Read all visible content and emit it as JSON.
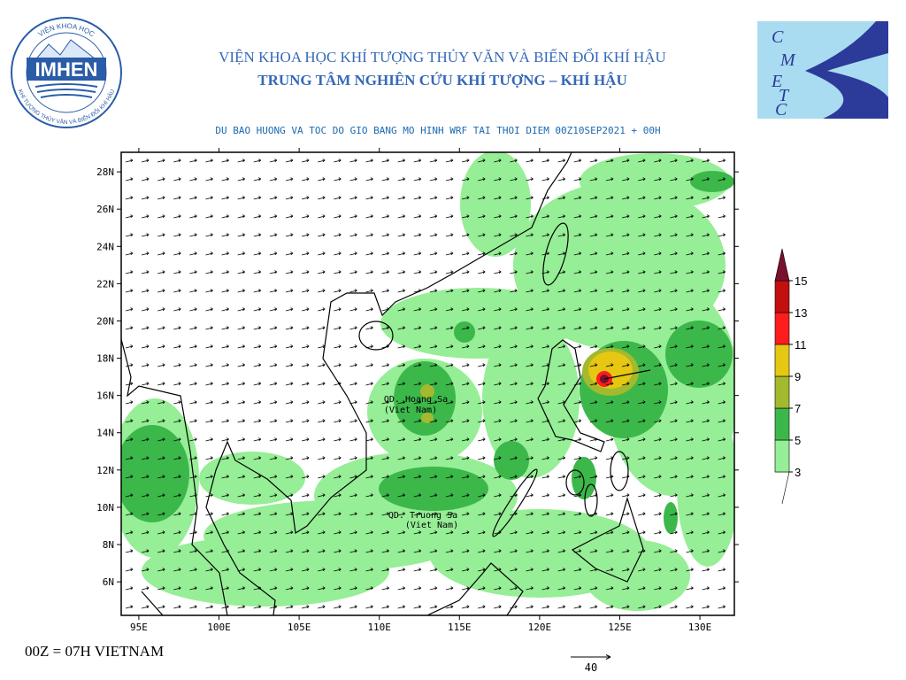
{
  "header": {
    "institute": "VIỆN KHOA HỌC KHÍ TƯỢNG THỦY VĂN VÀ BIẾN ĐỔI KHÍ HẬU",
    "center": "TRUNG TÂM NGHIÊN CỨU KHÍ TƯỢNG – KHÍ HẬU"
  },
  "logos": {
    "left": {
      "name": "IMHEN",
      "ring_top": "VIỆN KHOA HỌC",
      "ring_bottom": "KHÍ TƯỢNG THỦY VĂN VÀ BIẾN ĐỔI KHÍ HẬU"
    },
    "right": {
      "letters": [
        "C",
        "M",
        "E",
        "T",
        "C"
      ]
    }
  },
  "map": {
    "title": "DU BAO HUONG VA TOC DO GIO BANG MO HINH WRF TAI THOI DIEM  00Z10SEP2021 + 00H",
    "xlim": [
      93.9,
      132.15
    ],
    "ylim": [
      4.2,
      29.05
    ],
    "xticks": [
      {
        "value": 95,
        "label": "95E"
      },
      {
        "value": 100,
        "label": "100E"
      },
      {
        "value": 105,
        "label": "105E"
      },
      {
        "value": 110,
        "label": "110E"
      },
      {
        "value": 115,
        "label": "115E"
      },
      {
        "value": 120,
        "label": "120E"
      },
      {
        "value": 125,
        "label": "125E"
      },
      {
        "value": 130,
        "label": "130E"
      }
    ],
    "yticks": [
      {
        "value": 6,
        "label": "6N"
      },
      {
        "value": 8,
        "label": "8N"
      },
      {
        "value": 10,
        "label": "10N"
      },
      {
        "value": 12,
        "label": "12N"
      },
      {
        "value": 14,
        "label": "14N"
      },
      {
        "value": 16,
        "label": "16N"
      },
      {
        "value": 18,
        "label": "18N"
      },
      {
        "value": 20,
        "label": "20N"
      },
      {
        "value": 22,
        "label": "22N"
      },
      {
        "value": 24,
        "label": "24N"
      },
      {
        "value": 26,
        "label": "26N"
      },
      {
        "value": 28,
        "label": "28N"
      }
    ],
    "annotations": [
      "QD. Hoang Sa",
      "(Viet Nam)",
      "QD. Truong Sa",
      "(Viet Nam)"
    ]
  },
  "colorbar": {
    "levels": [
      3,
      5,
      7,
      9,
      11,
      13,
      15
    ],
    "colors": [
      "#96ee96",
      "#3cb84a",
      "#a3b92e",
      "#e6c712",
      "#ff1c1c",
      "#c40f0f",
      "#7a0f2e"
    ]
  },
  "footer": {
    "time_note": "00Z = 07H VIETNAM",
    "reference_vector": 40
  }
}
